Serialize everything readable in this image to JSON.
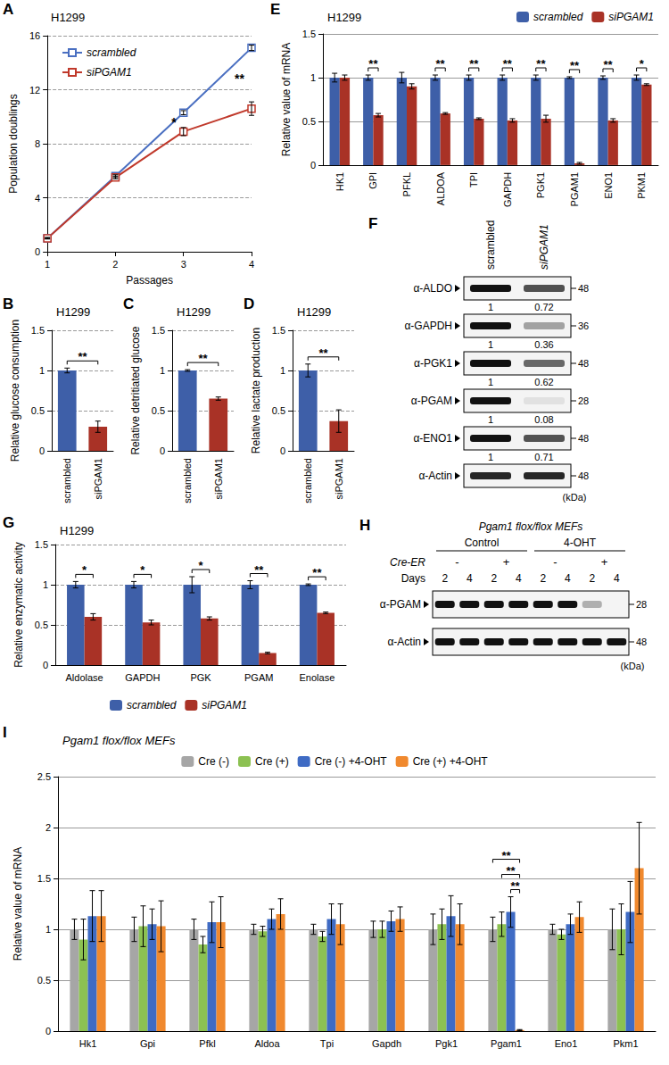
{
  "chart_data": [
    {
      "panel_label": "A",
      "type": "line",
      "title": "H1299",
      "x_label": "Passages",
      "y_label": "Population doublings",
      "x": [
        1,
        2,
        3,
        4
      ],
      "xlim": [
        1,
        4
      ],
      "xticks": [
        1,
        2,
        3,
        4
      ],
      "ylim": [
        0,
        16
      ],
      "yticks": [
        0,
        4,
        8,
        12,
        16
      ],
      "grid": true,
      "legend": "upper left",
      "series": [
        {
          "name": "scrambled",
          "color": "#4a6fc1",
          "marker": "square",
          "values": [
            1,
            5.6,
            10.3,
            15.1
          ],
          "errors": [
            0.05,
            0.1,
            0.15,
            0.2
          ]
        },
        {
          "name": "siPGAM1",
          "color": "#c0392b",
          "marker": "square",
          "values": [
            1,
            5.5,
            8.9,
            10.6
          ],
          "errors": [
            0.05,
            0.1,
            0.3,
            0.5
          ]
        }
      ],
      "annotations": [
        {
          "x": 3,
          "text": "*"
        },
        {
          "x": 4,
          "text": "**"
        }
      ]
    },
    {
      "panel_label": "B",
      "type": "bar",
      "title": "H1299",
      "y_label": "Relative glucose consumption",
      "categories": [
        "scrambled",
        "siPGAM1"
      ],
      "values": [
        1,
        0.3
      ],
      "errors": [
        0.03,
        0.07
      ],
      "colors": [
        "#3e5fa8",
        "#a93226"
      ],
      "ylim": [
        0,
        1.5
      ],
      "yticks": [
        0,
        0.5,
        1,
        1.5
      ],
      "grid": true,
      "annotations": [
        {
          "between": [
            "scrambled",
            "siPGAM1"
          ],
          "text": "**"
        }
      ]
    },
    {
      "panel_label": "C",
      "type": "bar",
      "title": "H1299",
      "y_label": "Relative detritiated glucose",
      "categories": [
        "scrambled",
        "siPGAM1"
      ],
      "values": [
        1,
        0.65
      ],
      "errors": [
        0.01,
        0.02
      ],
      "colors": [
        "#3e5fa8",
        "#a93226"
      ],
      "ylim": [
        0,
        1.5
      ],
      "yticks": [
        0,
        0.5,
        1,
        1.5
      ],
      "grid": true,
      "annotations": [
        {
          "between": [
            "scrambled",
            "siPGAM1"
          ],
          "text": "**"
        }
      ]
    },
    {
      "panel_label": "D",
      "type": "bar",
      "title": "H1299",
      "y_label": "Relative lactate production",
      "categories": [
        "scrambled",
        "siPGAM1"
      ],
      "values": [
        1,
        0.37
      ],
      "errors": [
        0.08,
        0.14
      ],
      "colors": [
        "#3e5fa8",
        "#a93226"
      ],
      "ylim": [
        0,
        1.5
      ],
      "yticks": [
        0,
        0.5,
        1,
        1.5
      ],
      "grid": true,
      "annotations": [
        {
          "between": [
            "scrambled",
            "siPGAM1"
          ],
          "text": "**"
        }
      ]
    },
    {
      "panel_label": "E",
      "type": "bar",
      "title": "H1299",
      "y_label": "Relative value of mRNA",
      "categories": [
        "HK1",
        "GPI",
        "PFKL",
        "ALDOA",
        "TPI",
        "GAPDH",
        "PGK1",
        "PGAM1",
        "ENO1",
        "PKM1"
      ],
      "ylim": [
        0,
        1.5
      ],
      "yticks": [
        0,
        0.5,
        1,
        1.5
      ],
      "grid": true,
      "legend": "upper right",
      "series": [
        {
          "name": "scrambled",
          "color": "#3e5fa8",
          "values": [
            1,
            1,
            1,
            1,
            1,
            1,
            1,
            1,
            1,
            1
          ],
          "errors": [
            0.05,
            0.03,
            0.06,
            0.03,
            0.03,
            0.03,
            0.03,
            0.01,
            0.02,
            0.03
          ]
        },
        {
          "name": "siPGAM1",
          "color": "#a93226",
          "values": [
            1,
            0.57,
            0.9,
            0.59,
            0.53,
            0.51,
            0.53,
            0.02,
            0.51,
            0.92
          ],
          "errors": [
            0.03,
            0.02,
            0.03,
            0.01,
            0.01,
            0.02,
            0.04,
            0.01,
            0.02,
            0.01
          ]
        }
      ],
      "annotations": [
        {
          "category": "GPI",
          "text": "**"
        },
        {
          "category": "ALDOA",
          "text": "**"
        },
        {
          "category": "TPI",
          "text": "**"
        },
        {
          "category": "GAPDH",
          "text": "**"
        },
        {
          "category": "PGK1",
          "text": "**"
        },
        {
          "category": "PGAM1",
          "text": "**"
        },
        {
          "category": "ENO1",
          "text": "**"
        },
        {
          "category": "PKM1",
          "text": "*"
        }
      ]
    },
    {
      "panel_label": "G",
      "type": "bar",
      "title": "H1299",
      "y_label": "Relative enzymatic activity",
      "categories": [
        "Aldolase",
        "GAPDH",
        "PGK",
        "PGAM",
        "Enolase"
      ],
      "ylim": [
        0,
        1.5
      ],
      "yticks": [
        0,
        0.5,
        1,
        1.5
      ],
      "grid": true,
      "legend": "bottom",
      "series": [
        {
          "name": "scrambled",
          "color": "#3e5fa8",
          "values": [
            1,
            1,
            1,
            1,
            1
          ],
          "errors": [
            0.04,
            0.04,
            0.1,
            0.05,
            0.01
          ]
        },
        {
          "name": "siPGAM1",
          "color": "#a93226",
          "values": [
            0.6,
            0.53,
            0.58,
            0.15,
            0.65
          ],
          "errors": [
            0.04,
            0.03,
            0.02,
            0.01,
            0.01
          ]
        }
      ],
      "annotations": [
        {
          "category": "Aldolase",
          "text": "*"
        },
        {
          "category": "GAPDH",
          "text": "*"
        },
        {
          "category": "PGK",
          "text": "*"
        },
        {
          "category": "PGAM",
          "text": "**"
        },
        {
          "category": "Enolase",
          "text": "**"
        }
      ]
    },
    {
      "panel_label": "I",
      "type": "bar",
      "title": "Pgam1 flox/flox MEFs",
      "y_label": "Relative value of mRNA",
      "categories": [
        "Hk1",
        "Gpi",
        "Pfkl",
        "Aldoa",
        "Tpi",
        "Gapdh",
        "Pgk1",
        "Pgam1",
        "Eno1",
        "Pkm1"
      ],
      "ylim": [
        0,
        2.5
      ],
      "yticks": [
        0,
        0.5,
        1,
        1.5,
        2,
        2.5
      ],
      "grid": true,
      "legend": "top",
      "series": [
        {
          "name": "Cre (-)",
          "color": "#a6a6a6",
          "values": [
            1,
            1,
            1,
            1,
            1,
            1,
            1,
            1,
            1,
            1
          ],
          "errors": [
            0.1,
            0.12,
            0.1,
            0.05,
            0.05,
            0.08,
            0.15,
            0.12,
            0.05,
            0.2
          ]
        },
        {
          "name": "Cre (+)",
          "color": "#8cc152",
          "values": [
            0.9,
            1.03,
            0.85,
            0.98,
            0.93,
            1.0,
            1.05,
            1.05,
            0.95,
            1.0
          ],
          "errors": [
            0.2,
            0.2,
            0.08,
            0.05,
            0.05,
            0.08,
            0.15,
            0.12,
            0.05,
            0.25
          ]
        },
        {
          "name": "Cre (-) +4-OHT",
          "color": "#3f6bc4",
          "values": [
            1.13,
            1.05,
            1.07,
            1.1,
            1.1,
            1.08,
            1.13,
            1.17,
            1.05,
            1.17
          ],
          "errors": [
            0.25,
            0.15,
            0.2,
            0.1,
            0.15,
            0.1,
            0.2,
            0.15,
            0.1,
            0.3
          ]
        },
        {
          "name": "Cre (+) +4-OHT",
          "color": "#f0892e",
          "values": [
            1.13,
            1.03,
            1.07,
            1.15,
            1.05,
            1.1,
            1.05,
            0.01,
            1.12,
            1.6
          ],
          "errors": [
            0.25,
            0.25,
            0.25,
            0.15,
            0.2,
            0.12,
            0.2,
            0.005,
            0.15,
            0.45
          ]
        }
      ],
      "annotations": [
        {
          "category": "Pgam1",
          "between": [
            "Cre (-) +4-OHT",
            "Cre (+) +4-OHT"
          ],
          "text": "**"
        },
        {
          "category": "Pgam1",
          "between": [
            "Cre (+)",
            "Cre (+) +4-OHT"
          ],
          "text": "**"
        },
        {
          "category": "Pgam1",
          "between": [
            "Cre (-)",
            "Cre (+) +4-OHT"
          ],
          "text": "**"
        }
      ]
    }
  ],
  "blots": [
    {
      "panel_label": "F",
      "lanes": [
        "scrambled",
        "siPGAM1"
      ],
      "unit": "(kDa)",
      "rows": [
        {
          "label": "α-ALDO",
          "marker": 48,
          "quant": [
            1,
            0.72
          ]
        },
        {
          "label": "α-GAPDH",
          "marker": 36,
          "quant": [
            1,
            0.36
          ]
        },
        {
          "label": "α-PGK1",
          "marker": 48,
          "quant": [
            1,
            0.62
          ]
        },
        {
          "label": "α-PGAM",
          "marker": 28,
          "quant": [
            1,
            0.08
          ]
        },
        {
          "label": "α-ENO1",
          "marker": 48,
          "quant": [
            1,
            0.71
          ]
        },
        {
          "label": "α-Actin",
          "marker": 48
        }
      ]
    },
    {
      "panel_label": "H",
      "title": "Pgam1 flox/flox MEFs",
      "cre_label": "Cre-ER",
      "days_label": "Days",
      "unit": "(kDa)",
      "groups": [
        {
          "label": "Control",
          "subgroups": [
            {
              "label": "-",
              "days": [
                2,
                4
              ]
            },
            {
              "label": "+",
              "days": [
                2,
                4
              ]
            }
          ]
        },
        {
          "label": "4-OHT",
          "subgroups": [
            {
              "label": "-",
              "days": [
                2,
                4
              ]
            },
            {
              "label": "+",
              "days": [
                2,
                4
              ]
            }
          ]
        }
      ],
      "rows": [
        {
          "label": "α-PGAM",
          "marker": 28,
          "intensity": [
            1,
            1,
            1,
            1,
            1,
            1,
            0.3,
            0
          ]
        },
        {
          "label": "α-Actin",
          "marker": 48,
          "intensity": [
            1,
            1,
            1,
            1,
            1,
            1,
            1,
            1
          ]
        }
      ]
    }
  ]
}
